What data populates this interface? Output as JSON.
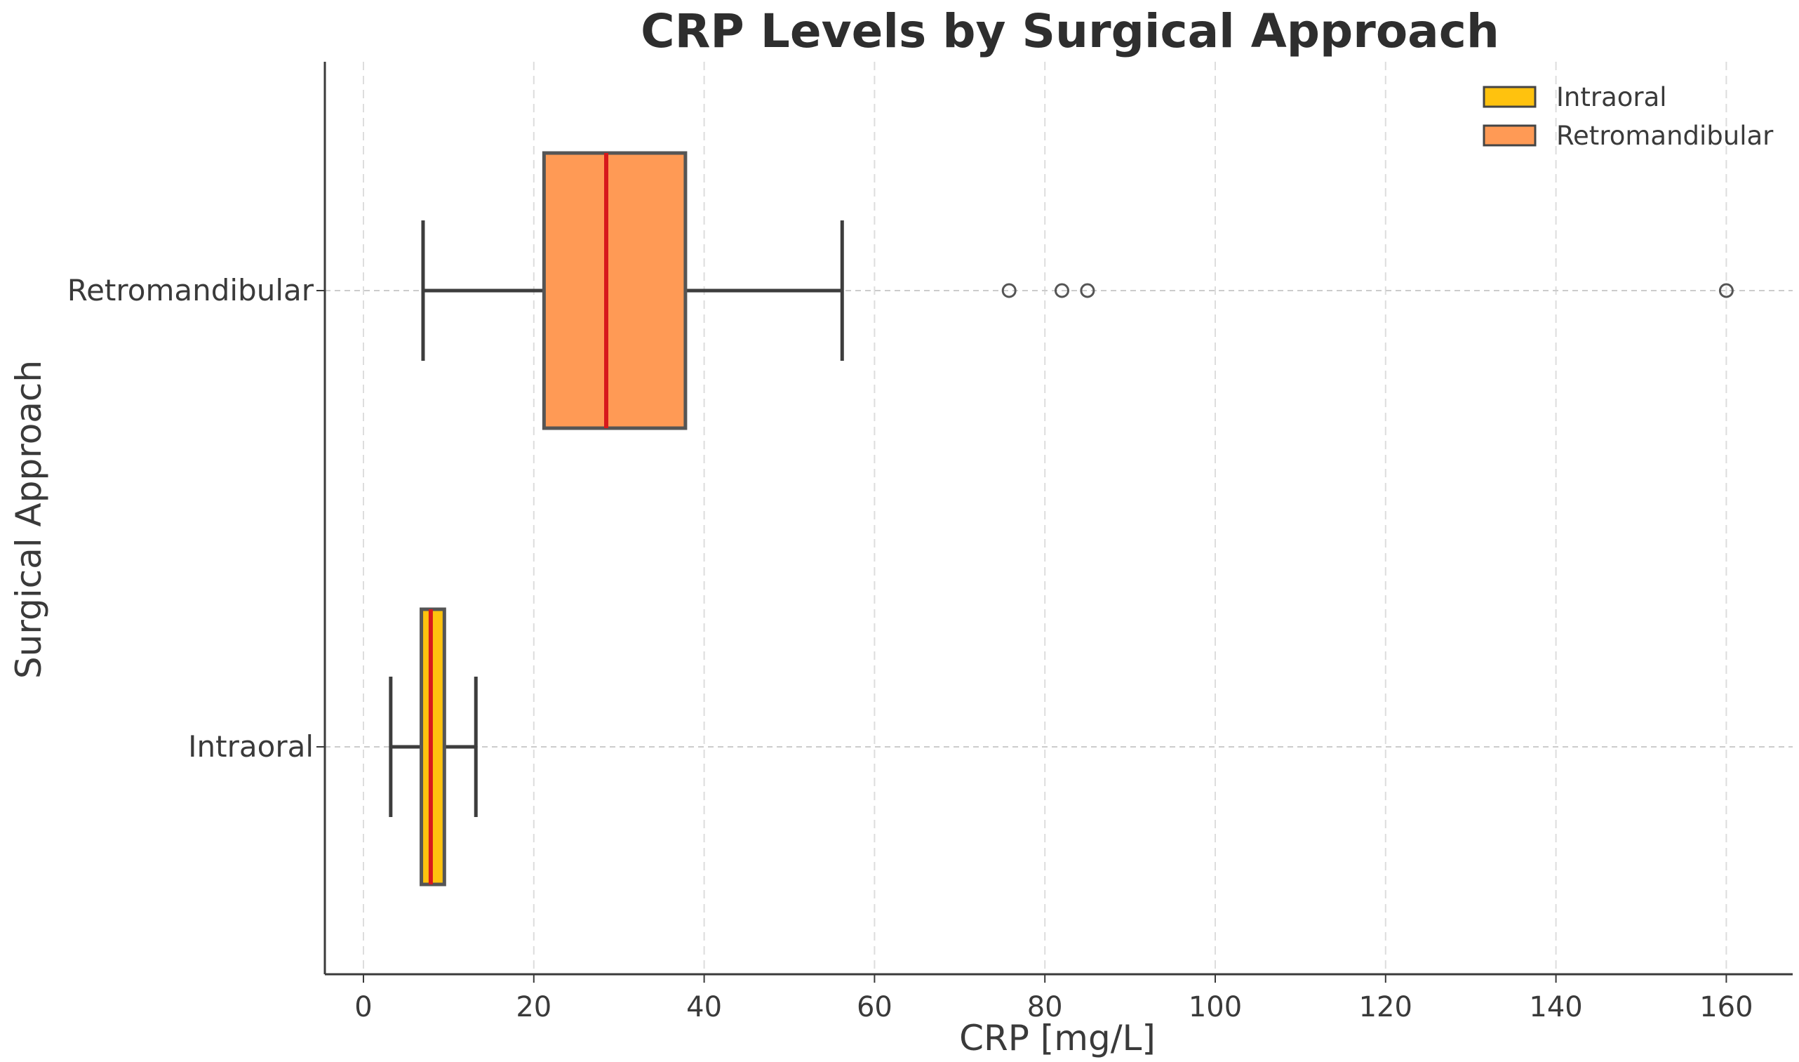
{
  "chart_data": {
    "type": "box",
    "orientation": "horizontal",
    "title": "CRP Levels by Surgical Approach",
    "xlabel": "CRP [mg/L]",
    "ylabel": "Surgical Approach",
    "xlim": [
      -4.5,
      167
    ],
    "xticks": [
      0,
      20,
      40,
      60,
      80,
      100,
      120,
      140,
      160
    ],
    "grid": true,
    "legend_position": "top-right",
    "median_color": "#d7191c",
    "series": [
      {
        "name": "Intraoral",
        "color": "#ffc20e",
        "whisker_low": 3.2,
        "q1": 6.8,
        "median": 7.9,
        "q3": 9.5,
        "whisker_high": 13.2,
        "outliers": []
      },
      {
        "name": "Retromandibular",
        "color": "#ff9a55",
        "whisker_low": 7.0,
        "q1": 21.2,
        "median": 28.5,
        "q3": 37.8,
        "whisker_high": 56.2,
        "outliers": [
          75.8,
          82.0,
          85.0,
          160.0
        ]
      }
    ]
  }
}
